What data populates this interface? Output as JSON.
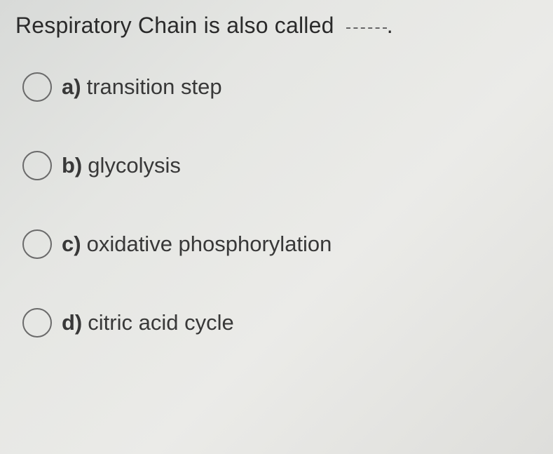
{
  "question": {
    "text": "Respiratory Chain is also called",
    "period": "."
  },
  "options": [
    {
      "letter": "a)",
      "text": "transition step"
    },
    {
      "letter": "b)",
      "text": "glycolysis"
    },
    {
      "letter": "c)",
      "text": "oxidative phosphorylation"
    },
    {
      "letter": "d)",
      "text": "citric acid cycle"
    }
  ],
  "styling": {
    "background_gradient": [
      "#d8dad8",
      "#e5e6e3",
      "#ebebe8",
      "#dededb"
    ],
    "question_fontsize": 32,
    "question_color": "#2a2a2a",
    "option_fontsize": 31,
    "option_color": "#383838",
    "radio_border_color": "#6a6a6a",
    "radio_size": 42,
    "option_spacing": 70,
    "blank_width": 58
  }
}
